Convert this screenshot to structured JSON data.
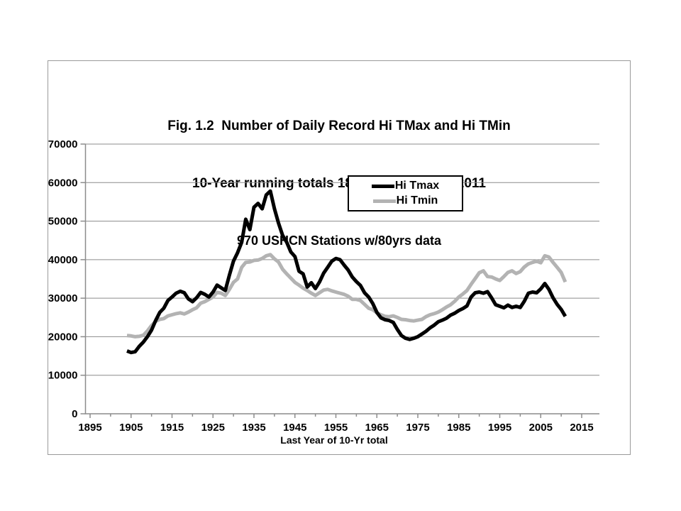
{
  "title": {
    "line1": "Fig. 1.2  Number of Daily Record Hi TMax and Hi TMin",
    "line2": "10-Year running totals 1895-1904 to 2002-2011",
    "line3": "970 USHCN Stations w/80yrs data"
  },
  "legend": {
    "items": [
      {
        "label": "Hi Tmax",
        "color": "#000000"
      },
      {
        "label": "Hi Tmin",
        "color": "#b3b3b3"
      }
    ]
  },
  "colors": {
    "grid": "#8c8c8c",
    "axis": "#8c8c8c",
    "frame": "#9a9a9a",
    "tmax_line": "#000000",
    "tmin_line": "#b3b3b3"
  },
  "chart_data": {
    "type": "line",
    "title": "Fig. 1.2 Number of Daily Record Hi TMax and Hi TMin / 10-Year running totals 1895-1904 to 2002-2011 / 970 USHCN Stations w/80yrs data",
    "xlabel": "Last Year of 10-Yr total",
    "ylabel": "",
    "xlim": [
      1895,
      2015
    ],
    "ylim": [
      0,
      70000
    ],
    "x_ticks": [
      1895,
      1905,
      1915,
      1925,
      1935,
      1945,
      1955,
      1965,
      1975,
      1985,
      1995,
      2005,
      2015
    ],
    "x_minor_tick_step": 5,
    "y_ticks": [
      0,
      10000,
      20000,
      30000,
      40000,
      50000,
      60000,
      70000
    ],
    "grid": "horizontal",
    "legend_position": "upper center",
    "x_first": 1904,
    "x_step": 1,
    "x_last": 2011,
    "series": [
      {
        "name": "Hi Tmax",
        "color": "#000000",
        "values": [
          16300,
          15900,
          16100,
          17500,
          18600,
          20000,
          21700,
          24200,
          26300,
          27400,
          29400,
          30300,
          31300,
          31800,
          31400,
          29800,
          29100,
          30100,
          31500,
          31000,
          30300,
          31600,
          33400,
          32700,
          32000,
          36000,
          39600,
          41800,
          44500,
          50500,
          47800,
          53600,
          54600,
          53200,
          56800,
          57800,
          53200,
          49500,
          46300,
          44500,
          42000,
          40800,
          37000,
          36300,
          32900,
          34000,
          32500,
          34200,
          36500,
          38000,
          39600,
          40300,
          40000,
          38600,
          37300,
          35500,
          34300,
          33300,
          31400,
          30300,
          28600,
          26300,
          24900,
          24400,
          24200,
          23700,
          21900,
          20300,
          19600,
          19300,
          19600,
          20000,
          20700,
          21400,
          22300,
          23000,
          23900,
          24300,
          24800,
          25600,
          26100,
          26800,
          27300,
          28000,
          30300,
          31400,
          31600,
          31300,
          31700,
          30100,
          28300,
          27900,
          27500,
          28200,
          27600,
          27900,
          27600,
          29200,
          31300,
          31600,
          31400,
          32400,
          33800,
          32300,
          30100,
          28400,
          27100,
          25300
        ]
      },
      {
        "name": "Hi Tmin",
        "color": "#b3b3b3",
        "values": [
          20300,
          20200,
          20000,
          20100,
          20400,
          21500,
          22900,
          24000,
          24500,
          24700,
          25400,
          25700,
          26000,
          26200,
          25900,
          26400,
          27000,
          27500,
          28700,
          29100,
          29700,
          30300,
          31500,
          31300,
          30700,
          32300,
          34100,
          35000,
          38000,
          39300,
          39400,
          39800,
          39900,
          40300,
          41000,
          41300,
          40200,
          39400,
          37500,
          36300,
          35200,
          34100,
          33400,
          32600,
          32000,
          31300,
          30700,
          31400,
          32100,
          32300,
          31900,
          31600,
          31300,
          31000,
          30500,
          29700,
          29700,
          29400,
          28400,
          27400,
          27000,
          26200,
          25700,
          25300,
          25200,
          25400,
          25000,
          24500,
          24400,
          24200,
          24100,
          24300,
          24500,
          25200,
          25700,
          26000,
          26400,
          27000,
          27700,
          28300,
          29200,
          30300,
          31100,
          32000,
          33600,
          35100,
          36600,
          37100,
          35600,
          35500,
          35000,
          34600,
          35600,
          36700,
          37100,
          36400,
          36900,
          38100,
          38900,
          39300,
          39600,
          39200,
          41000,
          40700,
          39300,
          38000,
          36700,
          34200
        ]
      }
    ]
  }
}
